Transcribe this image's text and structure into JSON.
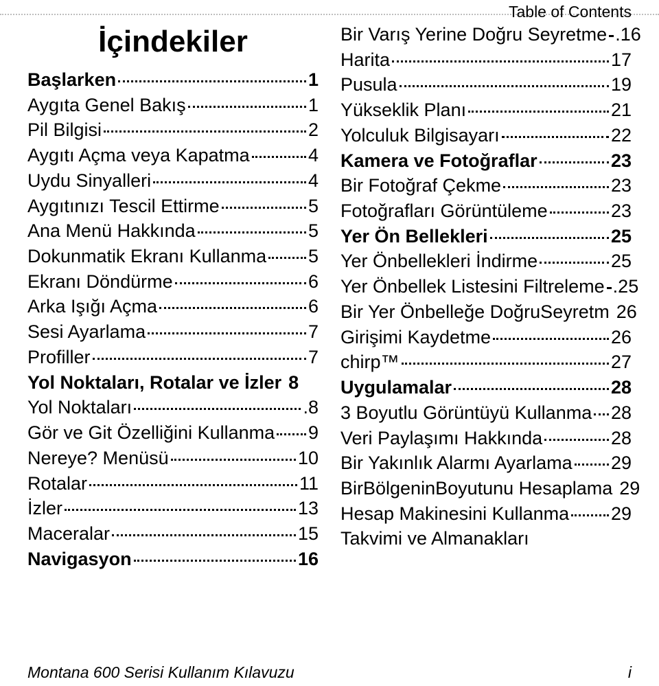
{
  "header": {
    "right_label": "Table of Contents"
  },
  "toc_title": "İçindekiler",
  "footer": {
    "left": "Montana 600 Serisi Kullanım Kılavuzu",
    "right": "i"
  },
  "left_items": [
    {
      "label": "Başlarken",
      "page": "1",
      "bold": true
    },
    {
      "label": "Aygıta Genel Bakış",
      "page": "1"
    },
    {
      "label": "Pil Bilgisi",
      "page": "2"
    },
    {
      "label": "Aygıtı Açma veya Kapatma",
      "page": "4"
    },
    {
      "label": "Uydu Sinyalleri",
      "page": "4"
    },
    {
      "label": "Aygıtınızı Tescil Ettirme",
      "page": "5"
    },
    {
      "label": "Ana Menü Hakkında",
      "page": "5"
    },
    {
      "label": "Dokunmatik Ekranı Kullanma",
      "page": "5"
    },
    {
      "label": "Ekranı Döndürme",
      "page": "6"
    },
    {
      "label": "Arka Işığı Açma",
      "page": "6"
    },
    {
      "label": "Sesi Ayarlama",
      "page": "7"
    },
    {
      "label": "Profiller",
      "page": "7"
    },
    {
      "label": "Yol Noktaları, Rotalar ve İzler",
      "page": "8",
      "bold": true,
      "noleader": true
    },
    {
      "label": "Yol Noktaları",
      "page": ".8"
    },
    {
      "label": "Gör ve Git Özelliğini Kullanma",
      "page": "9"
    },
    {
      "label": "Nereye? Menüsü",
      "page": "10"
    },
    {
      "label": "Rotalar",
      "page": "11"
    },
    {
      "label": "İzler",
      "page": "13"
    },
    {
      "label": "Maceralar",
      "page": "15"
    },
    {
      "label": "Navigasyon",
      "page": "16",
      "bold": true
    }
  ],
  "right_items": [
    {
      "label": "Bir Varış Yerine Doğru Seyretme",
      "page": ".16",
      "tight": true
    },
    {
      "label": "Harita",
      "page": "17"
    },
    {
      "label": "Pusula",
      "page": "19"
    },
    {
      "label": "Yükseklik Planı",
      "page": "21"
    },
    {
      "label": "Yolculuk Bilgisayarı",
      "page": "22"
    },
    {
      "label": "Kamera ve Fotoğraflar",
      "page": "23",
      "bold": true
    },
    {
      "label": "Bir Fotoğraf Çekme",
      "page": "23"
    },
    {
      "label": "Fotoğrafları Görüntüleme",
      "page": "23"
    },
    {
      "label": "Yer Ön Bellekleri",
      "page": "25",
      "bold": true
    },
    {
      "label": "Yer Önbellekleri İndirme",
      "page": "25"
    },
    {
      "label": "Yer Önbellek Listesini Filtreleme",
      "page": ".25",
      "tight": true
    },
    {
      "label": "Bir Yer Önbelleğe DoğruSeyretm",
      "page": "26",
      "noleader": true
    },
    {
      "label": "Girişimi Kaydetme",
      "page": "26"
    },
    {
      "label": "chirp™",
      "page": "27"
    },
    {
      "label": "Uygulamalar",
      "page": "28",
      "bold": true
    },
    {
      "label": "3 Boyutlu Görüntüyü Kullanma",
      "page": "28"
    },
    {
      "label": "Veri Paylaşımı Hakkında",
      "page": "28"
    },
    {
      "label": "Bir Yakınlık Alarmı Ayarlama",
      "page": "29"
    },
    {
      "label": "BirBölgeninBoyutunu Hesaplama",
      "page": "29",
      "noleader": true
    },
    {
      "label": "Hesap Makinesini Kullanma",
      "page": "29"
    },
    {
      "label": "Takvimi ve Almanakları",
      "page": "",
      "noleader": true
    }
  ]
}
